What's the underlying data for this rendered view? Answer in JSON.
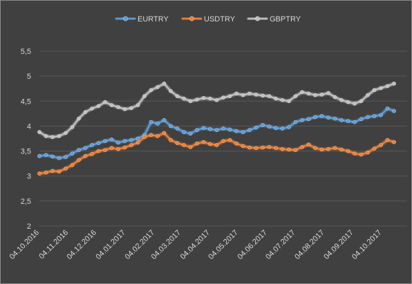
{
  "chart_data": {
    "type": "line",
    "title": "",
    "xlabel": "",
    "ylabel": "",
    "ylim": [
      2,
      5.5
    ],
    "y_ticks": [
      "2",
      "2,5",
      "3",
      "3,5",
      "4",
      "4,5",
      "5",
      "5,5"
    ],
    "x_range": [
      "2016-10-04",
      "2017-10-31"
    ],
    "x_ticks": [
      "04.10.2016",
      "04.11.2016",
      "04.12.2016",
      "04.01.2017",
      "04.02.2017",
      "04.03.2017",
      "04.04.2017",
      "04.05.2017",
      "04.06.2017",
      "04.07.2017",
      "04.08.2017",
      "04.09.2017",
      "04.10.2017"
    ],
    "grid": true,
    "legend_position": "top",
    "marker": "circle",
    "sampling": "weekly, starting 2016-10-04",
    "series": [
      {
        "name": "EURTRY",
        "color": "#5b9bd5",
        "values": [
          3.4,
          3.42,
          3.39,
          3.36,
          3.38,
          3.45,
          3.52,
          3.56,
          3.62,
          3.66,
          3.7,
          3.73,
          3.67,
          3.7,
          3.72,
          3.75,
          3.82,
          4.08,
          4.05,
          4.12,
          4.0,
          3.95,
          3.88,
          3.85,
          3.92,
          3.96,
          3.94,
          3.92,
          3.95,
          3.93,
          3.9,
          3.88,
          3.92,
          3.97,
          4.02,
          3.99,
          3.96,
          3.95,
          3.98,
          4.08,
          4.12,
          4.14,
          4.18,
          4.2,
          4.17,
          4.15,
          4.12,
          4.1,
          4.08,
          4.14,
          4.18,
          4.2,
          4.22,
          4.35,
          4.3
        ]
      },
      {
        "name": "USDTRY",
        "color": "#ed7d31",
        "values": [
          3.05,
          3.07,
          3.1,
          3.09,
          3.15,
          3.22,
          3.32,
          3.4,
          3.44,
          3.5,
          3.52,
          3.56,
          3.54,
          3.57,
          3.62,
          3.67,
          3.78,
          3.82,
          3.8,
          3.86,
          3.72,
          3.66,
          3.62,
          3.58,
          3.65,
          3.68,
          3.64,
          3.62,
          3.7,
          3.72,
          3.65,
          3.6,
          3.57,
          3.56,
          3.57,
          3.58,
          3.56,
          3.54,
          3.53,
          3.52,
          3.58,
          3.63,
          3.56,
          3.53,
          3.54,
          3.56,
          3.53,
          3.5,
          3.45,
          3.43,
          3.47,
          3.55,
          3.62,
          3.72,
          3.68
        ]
      },
      {
        "name": "GBPTRY",
        "color": "#bfbfbf",
        "values": [
          3.88,
          3.8,
          3.78,
          3.8,
          3.86,
          3.98,
          4.15,
          4.28,
          4.35,
          4.4,
          4.48,
          4.42,
          4.38,
          4.34,
          4.36,
          4.42,
          4.6,
          4.72,
          4.78,
          4.85,
          4.7,
          4.6,
          4.55,
          4.5,
          4.53,
          4.56,
          4.55,
          4.52,
          4.57,
          4.6,
          4.65,
          4.62,
          4.65,
          4.63,
          4.61,
          4.6,
          4.55,
          4.52,
          4.5,
          4.6,
          4.68,
          4.65,
          4.62,
          4.63,
          4.66,
          4.58,
          4.52,
          4.48,
          4.45,
          4.5,
          4.62,
          4.72,
          4.76,
          4.8,
          4.85
        ]
      }
    ]
  }
}
